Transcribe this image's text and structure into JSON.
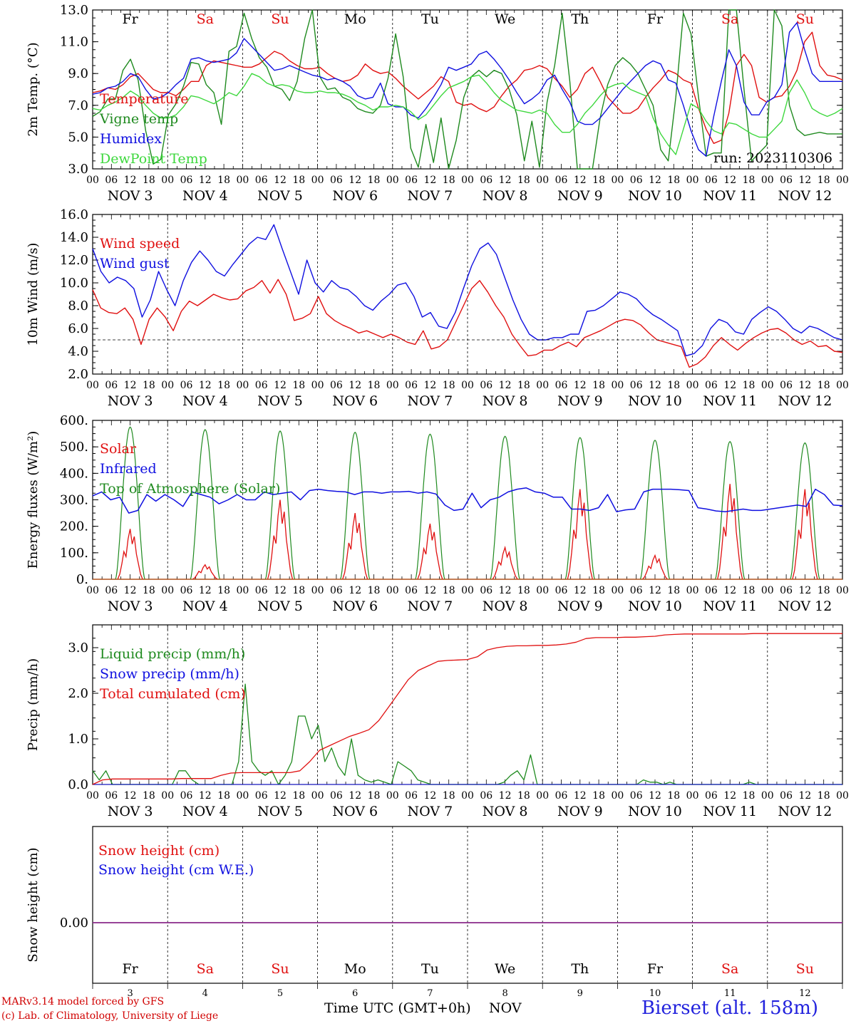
{
  "colors": {
    "red": "#e01010",
    "green": "#1f8a1f",
    "lightgreen": "#3ed83e",
    "blue": "#1010e0",
    "purple": "#8a2a8a",
    "black": "#000000"
  },
  "day_labels": [
    "Fr",
    "Sa",
    "Su",
    "Mo",
    "Tu",
    "We",
    "Th",
    "Fr",
    "Sa",
    "Su"
  ],
  "weekend_days": [
    1,
    2,
    8,
    9
  ],
  "date_labels": [
    "NOV  3",
    "NOV  4",
    "NOV  5",
    "NOV  6",
    "NOV  7",
    "NOV  8",
    "NOV  9",
    "NOV 10",
    "NOV 11",
    "NOV 12"
  ],
  "hour_labels": [
    "00",
    "06",
    "12",
    "18"
  ],
  "last_hour_label": "00",
  "bottom_day_numbers": [
    "3",
    "4",
    "5",
    "6",
    "7",
    "8",
    "9",
    "10",
    "11",
    "12"
  ],
  "run_label": "run: 2023110306",
  "footer": {
    "credit_line1": "MARv3.14 model forced by GFS",
    "credit_line2": "(c) Lab. of Climatology, University of Liege",
    "x_title": "Time UTC (GMT+0h)",
    "x_title2": "NOV",
    "station": "Bierset (alt. 158m)"
  },
  "chart_data": [
    {
      "type": "line",
      "id": "temp",
      "ylabel": "2m Temp. (°C)",
      "ylim": [
        3.0,
        13.0
      ],
      "yticks": [
        "3.0",
        "5.0",
        "7.0",
        "9.0",
        "11.0",
        "13.0"
      ],
      "x_unit": "hours since 2023-11-03 00 UTC (3-hourly)",
      "series": [
        {
          "name": "Temperature",
          "color": "#e01010",
          "values": [
            7.8,
            7.9,
            8.1,
            8.0,
            8.3,
            8.8,
            9.0,
            8.5,
            8.0,
            7.8,
            7.8,
            7.6,
            8.0,
            8.5,
            8.5,
            9.5,
            9.8,
            9.7,
            9.6,
            9.5,
            9.4,
            9.4,
            9.6,
            10.0,
            10.4,
            10.2,
            9.8,
            9.5,
            9.3,
            9.3,
            9.4,
            9.0,
            8.7,
            8.5,
            8.6,
            8.9,
            9.6,
            9.2,
            9.0,
            9.1,
            8.7,
            8.2,
            7.8,
            7.4,
            7.8,
            8.2,
            8.8,
            8.5,
            7.2,
            7.0,
            7.1,
            6.8,
            6.6,
            6.9,
            7.6,
            8.2,
            8.6,
            9.2,
            9.3,
            9.5,
            9.3,
            8.7,
            8.2,
            7.5,
            8.0,
            9.0,
            9.4,
            8.5,
            7.5,
            7.0,
            6.5,
            6.5,
            6.8,
            7.5,
            8.1,
            8.6,
            9.2,
            9.0,
            8.6,
            8.4,
            6.8,
            5.5,
            4.6,
            4.8,
            6.5,
            9.5,
            10.2,
            9.5,
            7.5,
            7.2,
            7.5,
            7.6,
            8.2,
            9.2,
            11.0,
            11.6,
            9.5,
            8.9,
            8.8,
            8.6
          ]
        },
        {
          "name": "Vigne temp",
          "color": "#1f8a1f",
          "values": [
            6.3,
            6.6,
            7.4,
            7.4,
            9.2,
            9.9,
            8.6,
            5.4,
            3.3,
            3.6,
            6.4,
            7.1,
            8.2,
            9.7,
            9.6,
            8.3,
            7.8,
            5.8,
            10.4,
            10.7,
            12.8,
            11.2,
            10.0,
            9.4,
            8.2,
            8.0,
            7.3,
            8.5,
            11.2,
            13.0,
            8.8,
            8.0,
            8.1,
            7.5,
            7.3,
            6.8,
            6.6,
            6.5,
            7.0,
            8.7,
            11.5,
            8.8,
            4.3,
            3.1,
            5.8,
            3.4,
            6.2,
            3.0,
            4.8,
            7.5,
            8.8,
            9.2,
            8.8,
            9.2,
            9.0,
            8.0,
            6.4,
            3.5,
            6.0,
            3.1,
            7.2,
            9.5,
            12.8,
            8.5,
            3.0,
            3.0,
            3.0,
            6.2,
            8.3,
            9.5,
            10.0,
            9.6,
            9.0,
            8.0,
            7.0,
            4.2,
            3.5,
            7.5,
            12.8,
            11.5,
            7.5,
            3.8,
            4.0,
            4.0,
            13.0,
            13.0,
            8.0,
            3.5,
            4.0,
            4.5,
            13.0,
            12.0,
            7.0,
            5.5,
            5.1,
            5.2,
            5.3,
            5.2,
            5.2,
            5.2
          ]
        },
        {
          "name": "Humidex",
          "color": "#1010e0",
          "values": [
            7.7,
            7.8,
            8.1,
            8.2,
            8.5,
            9.0,
            8.8,
            8.0,
            7.4,
            7.5,
            7.8,
            8.3,
            8.7,
            9.9,
            10.0,
            9.8,
            9.7,
            9.8,
            9.9,
            10.3,
            11.2,
            10.7,
            10.2,
            9.7,
            9.2,
            9.3,
            9.5,
            9.3,
            9.1,
            8.9,
            8.8,
            8.6,
            8.7,
            8.5,
            8.2,
            7.6,
            7.4,
            7.5,
            8.4,
            7.1,
            6.9,
            6.9,
            6.4,
            6.2,
            6.8,
            7.5,
            8.3,
            9.4,
            9.2,
            9.4,
            9.6,
            10.2,
            10.4,
            9.9,
            9.3,
            8.6,
            7.8,
            7.1,
            7.4,
            7.8,
            8.6,
            8.9,
            8.0,
            7.2,
            6.0,
            5.8,
            5.8,
            6.2,
            6.8,
            7.4,
            8.0,
            8.5,
            9.0,
            9.5,
            9.8,
            9.6,
            8.6,
            8.4,
            7.0,
            5.4,
            4.2,
            3.8,
            6.3,
            8.5,
            10.5,
            9.5,
            7.2,
            6.4,
            6.4,
            7.2,
            7.5,
            8.3,
            11.6,
            12.2,
            10.5,
            9.0,
            8.5,
            8.5,
            8.5,
            8.5
          ]
        },
        {
          "name": "DewPoint Temp",
          "color": "#3ed83e",
          "values": [
            6.8,
            6.7,
            7.0,
            7.2,
            7.5,
            7.9,
            7.6,
            7.0,
            6.5,
            6.2,
            6.2,
            6.4,
            6.9,
            7.6,
            7.5,
            7.3,
            7.1,
            7.4,
            7.8,
            7.6,
            8.2,
            9.0,
            8.8,
            8.4,
            8.2,
            8.3,
            8.2,
            7.9,
            7.8,
            7.8,
            7.9,
            7.8,
            7.8,
            7.7,
            7.5,
            7.2,
            7.0,
            6.7,
            6.9,
            6.9,
            7.0,
            6.9,
            6.6,
            6.1,
            6.4,
            7.0,
            7.6,
            8.1,
            8.3,
            8.5,
            8.8,
            8.9,
            8.4,
            7.8,
            7.3,
            7.0,
            6.7,
            6.6,
            6.5,
            6.7,
            6.5,
            5.8,
            5.3,
            5.3,
            5.8,
            6.5,
            7.0,
            7.6,
            8.1,
            8.3,
            8.4,
            8.0,
            7.8,
            7.6,
            6.2,
            5.2,
            4.5,
            3.9,
            5.5,
            7.1,
            6.8,
            6.0,
            5.4,
            5.2,
            5.9,
            5.8,
            5.5,
            5.2,
            5.0,
            5.0,
            5.5,
            6.0,
            7.8,
            8.6,
            7.8,
            6.8,
            6.5,
            6.3,
            6.5,
            6.8
          ]
        }
      ]
    },
    {
      "type": "line",
      "id": "wind",
      "ylabel": "10m Wind (m/s)",
      "ylim": [
        2.0,
        16.0
      ],
      "yticks": [
        "2.0",
        "4.0",
        "6.0",
        "8.0",
        "10.0",
        "12.0",
        "14.0",
        "16.0"
      ],
      "reference_line": 5.0,
      "series": [
        {
          "name": "Wind speed",
          "color": "#e01010",
          "values": [
            9.4,
            7.8,
            7.4,
            7.3,
            7.8,
            6.8,
            4.6,
            6.8,
            7.8,
            7.0,
            5.8,
            7.5,
            8.4,
            8.0,
            8.5,
            9.0,
            8.7,
            8.5,
            8.6,
            9.3,
            9.6,
            10.2,
            9.1,
            10.3,
            9.0,
            6.7,
            6.9,
            7.3,
            8.8,
            7.3,
            6.7,
            6.3,
            6.0,
            5.6,
            5.8,
            5.5,
            5.2,
            5.5,
            5.2,
            4.8,
            4.6,
            5.8,
            4.2,
            4.4,
            5.0,
            6.5,
            8.0,
            9.5,
            10.2,
            9.2,
            8.0,
            7.0,
            5.5,
            4.5,
            3.6,
            3.7,
            4.1,
            4.1,
            4.5,
            4.8,
            4.4,
            5.2,
            5.5,
            5.8,
            6.2,
            6.6,
            6.8,
            6.7,
            6.3,
            5.6,
            5.0,
            4.8,
            4.6,
            4.4,
            2.6,
            2.9,
            3.5,
            4.5,
            5.2,
            4.6,
            4.1,
            4.7,
            5.2,
            5.6,
            5.9,
            6.0,
            5.6,
            5.0,
            4.6,
            4.9,
            4.4,
            4.5,
            4.0,
            3.9
          ]
        },
        {
          "name": "Wind gust",
          "color": "#1010e0",
          "values": [
            13.0,
            11.0,
            10.0,
            10.5,
            10.2,
            9.5,
            7.0,
            8.5,
            11.0,
            9.4,
            8.0,
            10.2,
            11.8,
            12.8,
            12.0,
            11.0,
            10.6,
            11.6,
            12.5,
            13.4,
            14.0,
            13.8,
            15.1,
            13.0,
            11.0,
            9.0,
            12.0,
            10.0,
            9.2,
            10.2,
            9.6,
            9.4,
            8.8,
            8.0,
            7.6,
            8.4,
            9.0,
            9.8,
            10.0,
            8.8,
            7.0,
            7.4,
            6.2,
            6.0,
            7.4,
            9.5,
            11.5,
            13.0,
            13.5,
            12.5,
            10.5,
            8.5,
            6.8,
            5.5,
            5.0,
            5.0,
            5.2,
            5.2,
            5.5,
            5.5,
            7.5,
            7.6,
            8.0,
            8.6,
            9.2,
            9.0,
            8.6,
            7.8,
            7.2,
            6.8,
            6.3,
            5.8,
            3.6,
            3.8,
            4.5,
            6.0,
            6.8,
            6.5,
            5.7,
            5.5,
            6.8,
            7.4,
            7.9,
            7.5,
            6.8,
            6.0,
            5.6,
            6.2,
            6.0,
            5.6,
            5.2,
            5.0
          ]
        }
      ]
    },
    {
      "type": "line",
      "id": "energy",
      "ylabel": "Energy fluxes (W/m²)",
      "ylim": [
        0,
        600
      ],
      "yticks": [
        "0.",
        "100.",
        "200.",
        "300.",
        "400.",
        "500.",
        "600."
      ],
      "series": [
        {
          "name": "Solar",
          "color": "#e01010",
          "daily_peak": [
            190,
            55,
            300,
            250,
            210,
            120,
            340,
            90,
            360,
            340
          ]
        },
        {
          "name": "Infrared",
          "color": "#1010e0",
          "values": [
            315,
            330,
            300,
            310,
            250,
            260,
            320,
            295,
            320,
            300,
            275,
            330,
            320,
            310,
            285,
            300,
            320,
            300,
            300,
            330,
            320,
            325,
            330,
            300,
            335,
            340,
            335,
            332,
            330,
            320,
            330,
            330,
            325,
            330,
            330,
            332,
            325,
            330,
            322,
            280,
            260,
            265,
            325,
            270,
            300,
            310,
            330,
            340,
            345,
            330,
            325,
            310,
            310,
            265,
            265,
            260,
            270,
            320,
            255,
            262,
            265,
            330,
            340,
            340,
            340,
            338,
            335,
            270,
            265,
            258,
            255,
            260,
            265,
            260,
            260,
            265,
            270,
            275,
            280,
            275,
            340,
            320,
            280,
            278
          ]
        },
        {
          "name": "Top of Atmosphere (Solar)",
          "color": "#1f8a1f",
          "daily_peak": [
            575,
            565,
            560,
            555,
            548,
            540,
            535,
            525,
            520,
            515
          ]
        }
      ]
    },
    {
      "type": "line",
      "id": "precip",
      "ylabel": "Precip (mm/h)",
      "ylim": [
        0,
        3.5
      ],
      "yticks": [
        "0.0",
        "1.0",
        "2.0",
        "3.0"
      ],
      "series": [
        {
          "name": "Liquid precip (mm/h)",
          "color": "#1f8a1f",
          "values": [
            0.3,
            0.1,
            0.3,
            0,
            0,
            0,
            0,
            0,
            0,
            0,
            0,
            0,
            0,
            0.3,
            0.3,
            0.1,
            0,
            0,
            0,
            0,
            0,
            0,
            0.5,
            2.2,
            0.5,
            0.3,
            0.2,
            0.3,
            0,
            0.2,
            0.5,
            1.5,
            1.5,
            1.0,
            1.3,
            0.5,
            0.8,
            0.4,
            0.2,
            1.0,
            0.2,
            0.1,
            0.05,
            0.1,
            0.05,
            0,
            0.5,
            0.4,
            0.3,
            0.1,
            0.05,
            0,
            0,
            0,
            0,
            0,
            0,
            0,
            0,
            0,
            0,
            0,
            0.05,
            0.2,
            0.3,
            0.1,
            0.65,
            0,
            0,
            0,
            0,
            0,
            0,
            0,
            0,
            0,
            0,
            0,
            0,
            0,
            0,
            0,
            0,
            0.1,
            0.05,
            0.05,
            0,
            0.05,
            0,
            0,
            0,
            0,
            0,
            0,
            0,
            0,
            0,
            0,
            0,
            0.05,
            0,
            0,
            0,
            0,
            0,
            0,
            0,
            0,
            0,
            0,
            0,
            0,
            0,
            0
          ]
        },
        {
          "name": "Snow precip (mm/h)",
          "color": "#1010e0",
          "values": [
            0
          ]
        },
        {
          "name": "Total cumulated (cm)",
          "color": "#e01010",
          "values": [
            0.0,
            0.1,
            0.12,
            0.12,
            0.12,
            0.12,
            0.12,
            0.12,
            0.12,
            0.13,
            0.13,
            0.13,
            0.13,
            0.2,
            0.25,
            0.26,
            0.26,
            0.26,
            0.26,
            0.26,
            0.26,
            0.3,
            0.5,
            0.75,
            0.85,
            0.95,
            1.05,
            1.12,
            1.2,
            1.4,
            1.7,
            2.0,
            2.3,
            2.5,
            2.6,
            2.7,
            2.72,
            2.73,
            2.74,
            2.8,
            2.95,
            3.0,
            3.03,
            3.04,
            3.04,
            3.05,
            3.05,
            3.06,
            3.08,
            3.12,
            3.2,
            3.22,
            3.22,
            3.22,
            3.23,
            3.23,
            3.24,
            3.25,
            3.28,
            3.29,
            3.3,
            3.3,
            3.3,
            3.3,
            3.3,
            3.3,
            3.3,
            3.31,
            3.31,
            3.31,
            3.31,
            3.31,
            3.31,
            3.31,
            3.31,
            3.31,
            3.31
          ]
        }
      ]
    },
    {
      "type": "line",
      "id": "snow",
      "ylabel": "Snow height (cm)",
      "yticks": [
        "0.00"
      ],
      "series": [
        {
          "name": "Snow height (cm)",
          "color": "#e01010",
          "values": [
            0
          ]
        },
        {
          "name": "Snow height (cm W.E.)",
          "color": "#1010e0",
          "values": [
            0
          ]
        }
      ]
    }
  ]
}
